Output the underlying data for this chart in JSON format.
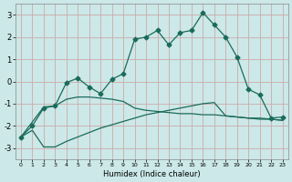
{
  "xlabel": "Humidex (Indice chaleur)",
  "xlim": [
    -0.5,
    23.5
  ],
  "ylim": [
    -3.5,
    3.5
  ],
  "yticks": [
    -3,
    -2,
    -1,
    0,
    1,
    2,
    3
  ],
  "xticks": [
    0,
    1,
    2,
    3,
    4,
    5,
    6,
    7,
    8,
    9,
    10,
    11,
    12,
    13,
    14,
    15,
    16,
    17,
    18,
    19,
    20,
    21,
    22,
    23
  ],
  "background_color": "#cce8e8",
  "grid_color": "#aaaacc",
  "line_color": "#1a6b5a",
  "series1_x": [
    0,
    1,
    2,
    3,
    4,
    5,
    6,
    7,
    8,
    9,
    10,
    11,
    12,
    13,
    14,
    15,
    16,
    17,
    18,
    19,
    20,
    21,
    22,
    23
  ],
  "series1_y": [
    -2.5,
    -2.0,
    -1.2,
    -1.1,
    -0.05,
    0.15,
    -0.25,
    -0.55,
    0.1,
    0.35,
    1.9,
    2.0,
    2.3,
    1.65,
    2.2,
    2.3,
    3.1,
    2.55,
    2.0,
    1.1,
    -0.35,
    -0.6,
    -1.65,
    -1.6
  ],
  "series2_x": [
    0,
    2,
    3,
    4,
    5,
    6,
    7,
    8,
    9,
    10,
    11,
    12,
    13,
    14,
    15,
    16,
    17,
    18,
    19,
    20,
    21,
    22,
    23
  ],
  "series2_y": [
    -2.5,
    -1.15,
    -1.1,
    -0.8,
    -0.7,
    -0.7,
    -0.75,
    -0.8,
    -0.9,
    -1.2,
    -1.3,
    -1.35,
    -1.4,
    -1.45,
    -1.45,
    -1.5,
    -1.5,
    -1.55,
    -1.6,
    -1.65,
    -1.65,
    -1.7,
    -1.75
  ],
  "series3_x": [
    0,
    1,
    2,
    3,
    4,
    5,
    6,
    7,
    8,
    9,
    10,
    11,
    12,
    13,
    14,
    15,
    16,
    17,
    18,
    19,
    20,
    21,
    22,
    23
  ],
  "series3_y": [
    -2.5,
    -2.2,
    -2.95,
    -2.95,
    -2.7,
    -2.5,
    -2.3,
    -2.1,
    -1.95,
    -1.8,
    -1.65,
    -1.5,
    -1.4,
    -1.3,
    -1.2,
    -1.1,
    -1.0,
    -0.95,
    -1.55,
    -1.6,
    -1.65,
    -1.7,
    -1.7,
    -1.75
  ],
  "marker_size": 2.5,
  "line_width": 0.9
}
